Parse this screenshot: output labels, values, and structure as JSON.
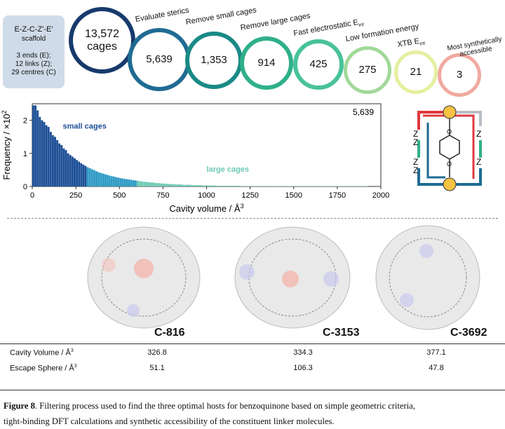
{
  "scaffold": {
    "title": "E-Z-C-Z'-E'",
    "subtitle": "scaffold",
    "line1": "3 ends (E);",
    "line2": "12 links (Z);",
    "line3": "29 centres (C)"
  },
  "funnel": {
    "start_value": "13,572",
    "start_unit": "cages",
    "steps": [
      {
        "label": "Evaluate sterics",
        "value": "5,639",
        "color": "#1f6b93"
      },
      {
        "label": "Remove small cages",
        "value": "1,353",
        "color": "#1a8a86"
      },
      {
        "label": "Remove large cages",
        "value": "914",
        "color": "#2fb08a"
      },
      {
        "label": "Fast electrostatic E",
        "label_sub": "int",
        "value": "425",
        "color": "#48c29a"
      },
      {
        "label": "Low formation energy",
        "value": "275",
        "color": "#a2d89a"
      },
      {
        "label": "XTB E",
        "label_sub": "int",
        "value": "21",
        "color": "#e6efa0"
      },
      {
        "label": "Most synthetically accessible",
        "value": "3",
        "color": "#f1a9a0"
      }
    ],
    "start_color": "#173a6c"
  },
  "chart_data": {
    "type": "bar",
    "title": "",
    "count_label": "5,639",
    "xlabel": "Cavity volume / Å",
    "xlabel_sup": "3",
    "ylabel": "Frequency / ×10",
    "ylabel_sup": "2",
    "xlim": [
      0,
      2000
    ],
    "ylim": [
      0,
      2.5
    ],
    "xticks": [
      "0",
      "250",
      "500",
      "750",
      "1000",
      "1250",
      "1500",
      "1750",
      "2000"
    ],
    "yticks": [
      "0",
      "1",
      "2"
    ],
    "bin_width": 12.5,
    "regions": [
      {
        "name": "small cages",
        "x_max": 312,
        "color": "#1d4f96"
      },
      {
        "name": "",
        "x_max": 600,
        "color": "#2e9ac4"
      },
      {
        "name": "large cages",
        "x_max": 2000,
        "color": "#6ec9b4"
      }
    ],
    "annotations": [
      "small cages",
      "large cages"
    ],
    "values": [
      2.45,
      2.45,
      2.3,
      2.1,
      2.0,
      1.95,
      1.85,
      1.8,
      1.65,
      1.55,
      1.5,
      1.4,
      1.3,
      1.25,
      1.15,
      1.1,
      1.0,
      0.95,
      0.9,
      0.85,
      0.8,
      0.75,
      0.7,
      0.66,
      0.62,
      0.58,
      0.55,
      0.52,
      0.49,
      0.46,
      0.43,
      0.41,
      0.39,
      0.37,
      0.35,
      0.33,
      0.31,
      0.3,
      0.28,
      0.27,
      0.25,
      0.24,
      0.23,
      0.22,
      0.21,
      0.2,
      0.19,
      0.18,
      0.17,
      0.16,
      0.15,
      0.14,
      0.14,
      0.13,
      0.12,
      0.12,
      0.11,
      0.1,
      0.1,
      0.09,
      0.09,
      0.08,
      0.08,
      0.07,
      0.07,
      0.07,
      0.06,
      0.06,
      0.06,
      0.05,
      0.05,
      0.05,
      0.05,
      0.04,
      0.04,
      0.04,
      0.04,
      0.04,
      0.03,
      0.03,
      0.03,
      0.03,
      0.03,
      0.03,
      0.02,
      0.02,
      0.02,
      0.02,
      0.02,
      0.02,
      0.02,
      0.02,
      0.02,
      0.02,
      0.02,
      0.01,
      0.01,
      0.01,
      0.01,
      0.01,
      0.01,
      0.01,
      0.01,
      0.01,
      0.01,
      0.01,
      0.01,
      0.01,
      0.01,
      0.01,
      0.01,
      0.01,
      0.01,
      0.01,
      0.01,
      0.01,
      0.01,
      0.01,
      0.01,
      0.01,
      0.01,
      0.01,
      0.01,
      0.01,
      0.01,
      0.01,
      0.01,
      0.01,
      0.01,
      0.01,
      0.01,
      0.01,
      0.01,
      0.01,
      0.01,
      0.01,
      0.01,
      0.01,
      0.01,
      0.01,
      0.01,
      0.01,
      0.01,
      0.01,
      0.01,
      0.01,
      0.01,
      0.01,
      0.01,
      0.01,
      0.01,
      0.01,
      0.01,
      0.01
    ]
  },
  "linker": {
    "z_label": "Z",
    "colors": {
      "red": "#e0393e",
      "green": "#2fb08a",
      "grey": "#b8bec4",
      "blue": "#1f6b93",
      "node": "#f6c242"
    }
  },
  "molecules": [
    {
      "name": "C-816",
      "volume": "326.8",
      "escape": "51.1"
    },
    {
      "name": "C-3153",
      "volume": "334.3",
      "escape": "106.3"
    },
    {
      "name": "C-3692",
      "volume": "377.1",
      "escape": "47.8"
    }
  ],
  "table": {
    "row1_label": "Cavity Volume / Å",
    "row1_sup": "3",
    "row2_label": "Escape Sphere / Å",
    "row2_sup": "3"
  },
  "caption": {
    "label": "Figure 8",
    "line1": ". Filtering process used to find the three optimal hosts for benzoquinone based on simple geometric criteria,",
    "line2": "tight-binding DFT calculations and synthetic accessibility of the constituent linker molecules."
  }
}
